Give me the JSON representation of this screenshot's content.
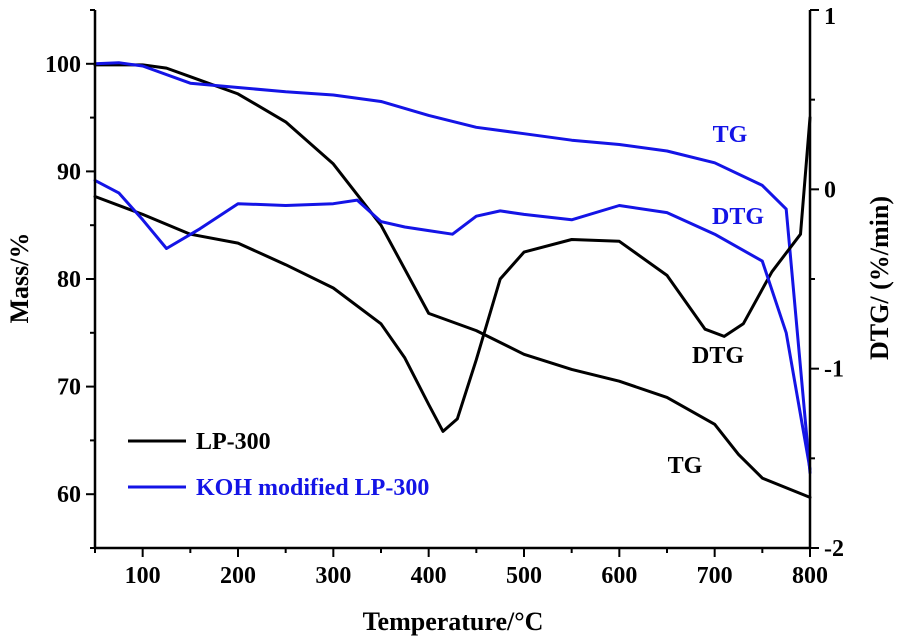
{
  "chart_data": {
    "type": "line",
    "title": "",
    "xlabel": "Temperature/°C",
    "ylabel_left": "Mass/%",
    "ylabel_right": "DTG/ (%/min)",
    "xlim": [
      50,
      800
    ],
    "ylim_left": [
      55,
      105
    ],
    "ylim_right": [
      -2,
      1
    ],
    "x_ticks": [
      100,
      200,
      300,
      400,
      500,
      600,
      700,
      800
    ],
    "y_left_ticks": [
      60,
      70,
      80,
      90,
      100
    ],
    "y_right_ticks": [
      -2,
      -1,
      0,
      1
    ],
    "colors": {
      "lp300": "#000000",
      "koh": "#1414e6"
    },
    "legend": {
      "placement": "bottom-left",
      "entries": [
        "LP-300",
        "KOH modified LP-300"
      ]
    },
    "annotations": [
      {
        "text": "TG",
        "series": "koh",
        "color": "#1414e6"
      },
      {
        "text": "DTG",
        "series": "koh",
        "color": "#1414e6"
      },
      {
        "text": "DTG",
        "series": "lp300",
        "color": "#000000"
      },
      {
        "text": "TG",
        "series": "lp300",
        "color": "#000000"
      }
    ],
    "series": [
      {
        "name": "LP-300",
        "kind": "TG",
        "axis": "left",
        "color_key": "lp300",
        "x": [
          50,
          100,
          125,
          150,
          200,
          250,
          300,
          350,
          400,
          450,
          500,
          550,
          600,
          650,
          700,
          725,
          750,
          800
        ],
        "y": [
          99.9,
          99.9,
          99.6,
          98.8,
          97.2,
          94.6,
          90.7,
          85.0,
          76.8,
          75.2,
          73.0,
          71.6,
          70.5,
          69.0,
          66.5,
          63.7,
          61.5,
          59.7
        ]
      },
      {
        "name": "KOH modified LP-300",
        "kind": "TG",
        "axis": "left",
        "color_key": "koh",
        "x": [
          50,
          75,
          100,
          150,
          200,
          250,
          300,
          350,
          400,
          450,
          500,
          550,
          600,
          650,
          700,
          750,
          775,
          800
        ],
        "y": [
          100.0,
          100.1,
          99.8,
          98.2,
          97.8,
          97.4,
          97.1,
          96.5,
          95.2,
          94.1,
          93.5,
          92.9,
          92.5,
          91.9,
          90.8,
          88.7,
          86.5,
          62.0
        ]
      },
      {
        "name": "LP-300",
        "kind": "DTG",
        "axis": "right",
        "color_key": "lp300",
        "x": [
          50,
          100,
          150,
          200,
          250,
          300,
          350,
          375,
          400,
          415,
          430,
          450,
          475,
          500,
          550,
          600,
          650,
          690,
          710,
          730,
          760,
          790,
          800
        ],
        "y": [
          -0.04,
          -0.14,
          -0.25,
          -0.3,
          -0.42,
          -0.55,
          -0.75,
          -0.94,
          -1.2,
          -1.35,
          -1.28,
          -0.95,
          -0.5,
          -0.35,
          -0.28,
          -0.29,
          -0.48,
          -0.78,
          -0.82,
          -0.75,
          -0.46,
          -0.25,
          0.4
        ]
      },
      {
        "name": "KOH modified LP-300",
        "kind": "DTG",
        "axis": "right",
        "color_key": "koh",
        "x": [
          50,
          75,
          100,
          125,
          160,
          200,
          250,
          300,
          325,
          350,
          375,
          400,
          425,
          450,
          475,
          500,
          550,
          600,
          650,
          700,
          750,
          775,
          800
        ],
        "y": [
          0.05,
          -0.02,
          -0.17,
          -0.33,
          -0.22,
          -0.08,
          -0.09,
          -0.08,
          -0.06,
          -0.18,
          -0.21,
          -0.23,
          -0.25,
          -0.15,
          -0.12,
          -0.14,
          -0.17,
          -0.09,
          -0.13,
          -0.25,
          -0.4,
          -0.8,
          -1.56
        ]
      }
    ]
  }
}
